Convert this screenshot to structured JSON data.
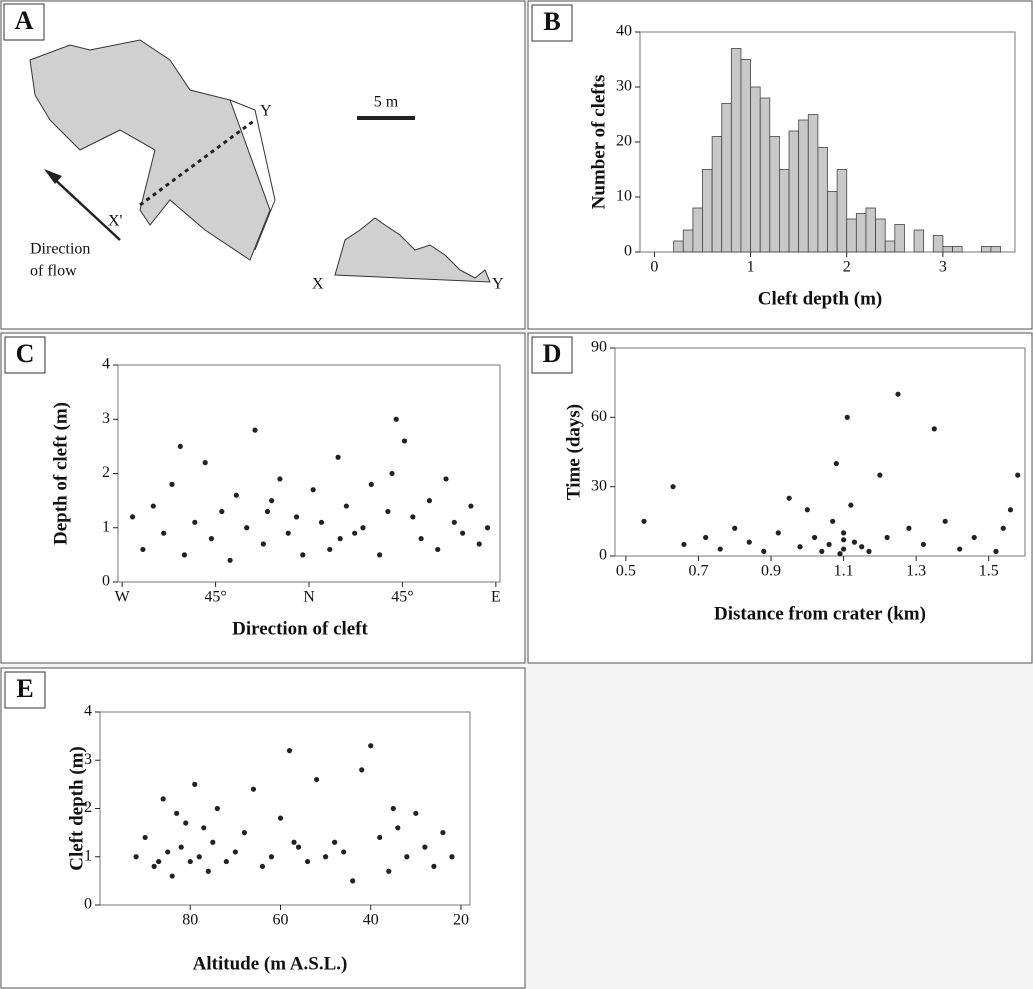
{
  "diagram": {
    "panel": "A",
    "scale": "5 m",
    "label_y1": "Y",
    "label_x1": "X'",
    "label_x2": "X",
    "label_y2": "Y",
    "flow_1": "Direction",
    "flow_2": "of flow"
  },
  "chart_data": [
    {
      "type": "histogram",
      "panel": "B",
      "y_label": "Number of clefts",
      "x_label": "Cleft depth (m)",
      "color": "#c8c8c8",
      "bins": [
        0.2,
        0.3,
        0.4,
        0.5,
        0.6,
        0.7,
        0.8,
        0.9,
        1.0,
        1.1,
        1.2,
        1.3,
        1.4,
        1.5,
        1.6,
        1.7,
        1.8,
        1.9,
        2.0,
        2.1,
        2.2,
        2.3,
        2.4,
        2.5,
        2.6,
        2.7,
        2.8,
        2.9,
        3.0,
        3.1,
        3.2,
        3.3,
        3.4,
        3.5,
        3.6
      ],
      "values": [
        2,
        4,
        8,
        15,
        21,
        27,
        37,
        35,
        30,
        28,
        21,
        15,
        22,
        24,
        25,
        19,
        11,
        15,
        6,
        7,
        8,
        6,
        2,
        5,
        0,
        4,
        0,
        3,
        1,
        1,
        0,
        0,
        1,
        1
      ],
      "xlim": [
        -0.15,
        3.75
      ],
      "xticks": [
        0,
        1,
        2,
        3
      ],
      "ylim": [
        0,
        40
      ],
      "yticks": [
        0,
        10,
        20,
        30,
        40
      ]
    },
    {
      "type": "scatter",
      "panel": "C",
      "y_label": "Depth of cleft (m)",
      "x_label": "Direction of cleft",
      "color": "#222222",
      "x": [
        -85,
        -80,
        -75,
        -70,
        -66,
        -60,
        -55,
        -50,
        -47,
        -42,
        -38,
        -35,
        -30,
        -26,
        -22,
        -18,
        -14,
        -10,
        -6,
        -3,
        2,
        6,
        10,
        14,
        18,
        22,
        26,
        30,
        34,
        38,
        42,
        46,
        50,
        54,
        58,
        62,
        66,
        70,
        74,
        78,
        82,
        86,
        -62,
        -20,
        15,
        40
      ],
      "values": [
        1.2,
        0.6,
        1.4,
        0.9,
        1.8,
        0.5,
        1.1,
        2.2,
        0.8,
        1.3,
        0.4,
        1.6,
        1.0,
        2.8,
        0.7,
        1.5,
        1.9,
        0.9,
        1.2,
        0.5,
        1.7,
        1.1,
        0.6,
        2.3,
        1.4,
        0.9,
        1.0,
        1.8,
        0.5,
        1.3,
        3.0,
        2.6,
        1.2,
        0.8,
        1.5,
        0.6,
        1.9,
        1.1,
        0.9,
        1.4,
        0.7,
        1.0,
        2.5,
        1.3,
        0.8,
        2.0
      ],
      "xlim": [
        -92,
        92
      ],
      "xticks": [
        {
          "value": -90,
          "label": "W"
        },
        {
          "value": -45,
          "label": "45°"
        },
        {
          "value": 0,
          "label": "N"
        },
        {
          "value": 45,
          "label": "45°"
        },
        {
          "value": 90,
          "label": "E"
        }
      ],
      "ylim": [
        0,
        4
      ],
      "yticks": [
        0,
        1,
        2,
        3,
        4
      ]
    },
    {
      "type": "scatter",
      "panel": "D",
      "y_label": "Time (days)",
      "x_label": "Distance from crater (km)",
      "color": "#222222",
      "x": [
        0.55,
        0.63,
        0.66,
        0.72,
        0.76,
        0.8,
        0.84,
        0.88,
        0.92,
        0.95,
        0.98,
        1.0,
        1.02,
        1.04,
        1.06,
        1.07,
        1.08,
        1.09,
        1.1,
        1.1,
        1.11,
        1.12,
        1.13,
        1.15,
        1.17,
        1.2,
        1.22,
        1.25,
        1.28,
        1.32,
        1.35,
        1.38,
        1.42,
        1.46,
        1.52,
        1.54,
        1.56,
        1.58,
        1.1,
        1.09
      ],
      "values": [
        15,
        30,
        5,
        8,
        3,
        12,
        6,
        2,
        10,
        25,
        4,
        20,
        8,
        2,
        5,
        15,
        40,
        1,
        3,
        10,
        60,
        22,
        6,
        4,
        2,
        35,
        8,
        70,
        12,
        5,
        55,
        15,
        3,
        8,
        2,
        12,
        20,
        35,
        7,
        1
      ],
      "xlim": [
        0.47,
        1.6
      ],
      "xticks": [
        0.5,
        0.7,
        0.9,
        1.1,
        1.3,
        1.5
      ],
      "ylim": [
        0,
        90
      ],
      "yticks": [
        0,
        30,
        60,
        90
      ]
    },
    {
      "type": "scatter",
      "panel": "E",
      "y_label": "Cleft depth (m)",
      "x_label": "Altitude (m A.S.L.)",
      "color": "#222222",
      "x": [
        92,
        90,
        88,
        86,
        85,
        84,
        83,
        82,
        80,
        79,
        78,
        77,
        76,
        75,
        74,
        72,
        70,
        68,
        66,
        64,
        62,
        60,
        58,
        56,
        54,
        52,
        50,
        48,
        46,
        44,
        42,
        40,
        38,
        36,
        35,
        34,
        32,
        30,
        28,
        26,
        24,
        22,
        57,
        81,
        87
      ],
      "values": [
        1.0,
        1.4,
        0.8,
        2.2,
        1.1,
        0.6,
        1.9,
        1.2,
        0.9,
        2.5,
        1.0,
        1.6,
        0.7,
        1.3,
        2.0,
        0.9,
        1.1,
        1.5,
        2.4,
        0.8,
        1.0,
        1.8,
        3.2,
        1.2,
        0.9,
        2.6,
        1.0,
        1.3,
        1.1,
        0.5,
        2.8,
        3.3,
        1.4,
        0.7,
        2.0,
        1.6,
        1.0,
        1.9,
        1.2,
        0.8,
        1.5,
        1.0,
        1.3,
        1.7,
        0.9
      ],
      "xlim": [
        100,
        18
      ],
      "xticks": [
        80,
        60,
        40,
        20
      ],
      "ylim": [
        0,
        4
      ],
      "yticks": [
        0,
        1,
        2,
        3,
        4
      ]
    }
  ]
}
